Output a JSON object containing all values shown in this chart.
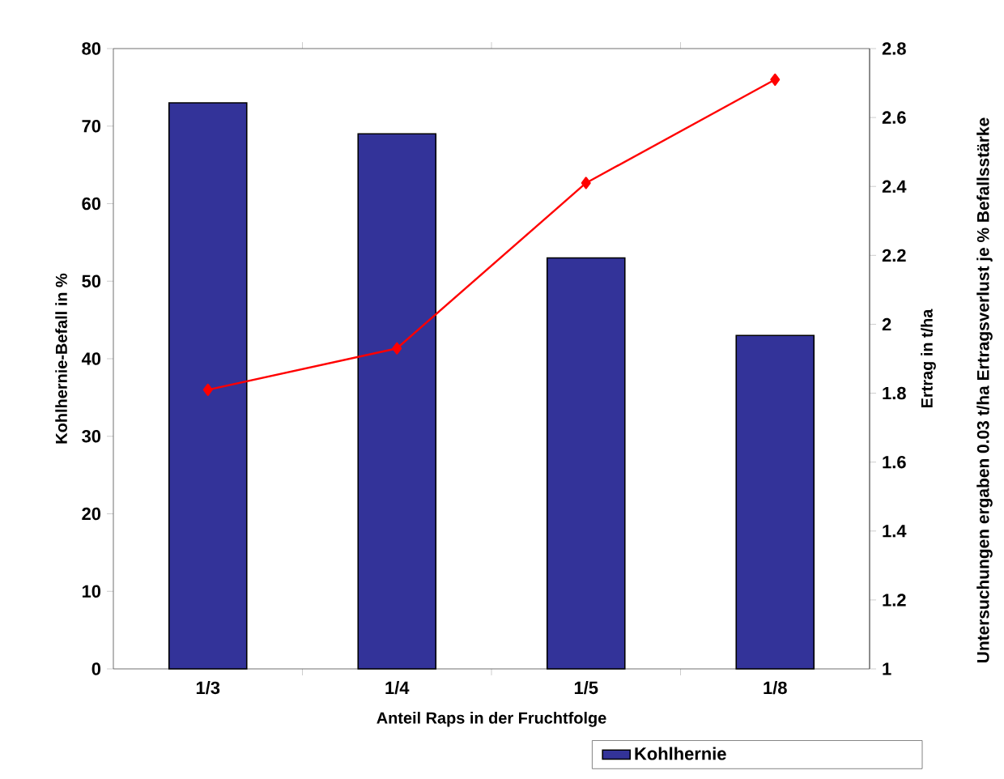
{
  "chart_data": {
    "type": "bar",
    "xlabel": "Anteil Raps in der Fruchtfolge",
    "ylabel": "Kohlhernie-Befall in %",
    "y2label": "Ertrag in t/ha",
    "annotations": [
      "Untersuchungen ergaben 0.03 t/ha Ertragsverlust je % Befallsstärke"
    ],
    "categories": [
      "1/3",
      "1/4",
      "1/5",
      "1/8"
    ],
    "series": [
      {
        "name": "Kohlhernie",
        "color": "#333399",
        "values": [
          73,
          69,
          53,
          43
        ]
      },
      {
        "type": "line",
        "axis": "y2",
        "color": "#ff0000",
        "marker": "diamond",
        "values": [
          1.81,
          1.93,
          2.41,
          2.71
        ]
      }
    ],
    "ylim": [
      0,
      80
    ],
    "yticks": [
      0,
      10,
      20,
      30,
      40,
      50,
      60,
      70,
      80
    ],
    "y2lim": [
      1,
      2.8
    ],
    "y2ticks": [
      1,
      1.2,
      1.4,
      1.6,
      1.8,
      2,
      2.2,
      2.4,
      2.6,
      2.8
    ],
    "legend": "bottom right"
  }
}
